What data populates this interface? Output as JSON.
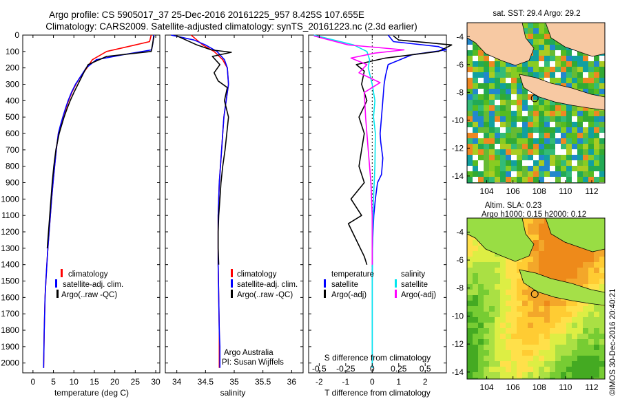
{
  "header": {
    "line1": "Argo profile: CS 5905017_37 25-Dec-2016 20161225_957 8.425S 107.655E",
    "line2": "Climatology: CARS2009. Satellite-adjusted climatology: synTS_20161223.nc (2.3d earlier)"
  },
  "chart_data": [
    {
      "type": "line",
      "title": "",
      "xlabel": "temperature (deg C)",
      "ylabel": "",
      "xlim": [
        -2.5,
        31
      ],
      "ylim": [
        2060,
        0
      ],
      "xticks": [
        0,
        5,
        10,
        15,
        20,
        25,
        30
      ],
      "yticks": [
        0,
        100,
        200,
        300,
        400,
        500,
        600,
        700,
        800,
        900,
        1000,
        1100,
        1200,
        1300,
        1400,
        1500,
        1600,
        1700,
        1800,
        1900,
        2000
      ],
      "legend": [
        "climatology",
        "satellite-adj. clim.",
        "Argo(..raw -QC)"
      ],
      "series": [
        {
          "name": "climatology",
          "color": "#ff0000",
          "x": [
            28.9,
            28.5,
            25,
            18,
            14.5,
            13.2,
            11.7,
            10.5,
            9.5,
            8.7,
            8.0,
            7.3,
            6.8,
            6.2,
            5.7,
            5.3,
            4.9,
            4.55,
            4.25,
            3.95,
            3.65,
            3.4,
            3.15,
            2.95,
            2.75,
            2.6
          ],
          "y": [
            0,
            40,
            60,
            100,
            150,
            200,
            250,
            300,
            350,
            400,
            450,
            500,
            550,
            600,
            700,
            800,
            900,
            1000,
            1100,
            1200,
            1300,
            1400,
            1500,
            1600,
            1800,
            2030
          ]
        },
        {
          "name": "satellite-adj. clim.",
          "color": "#0000ff",
          "x": [
            29.5,
            29.3,
            29.0,
            22,
            15.5,
            13.0,
            11.7,
            10.4,
            9.4,
            8.6,
            7.9,
            7.3,
            6.7,
            6.2,
            5.7,
            5.3,
            4.9,
            4.55,
            4.25,
            3.95,
            3.65,
            3.4,
            3.15,
            2.95,
            2.75,
            2.6
          ],
          "y": [
            0,
            50,
            90,
            120,
            150,
            200,
            250,
            300,
            350,
            400,
            450,
            500,
            550,
            600,
            700,
            800,
            900,
            1000,
            1100,
            1200,
            1300,
            1400,
            1500,
            1600,
            1800,
            2030
          ]
        },
        {
          "name": "Argo(..raw -QC)",
          "color": "#000000",
          "x": [
            29.6,
            29.4,
            29.2,
            28.9,
            18,
            13.5,
            12.4,
            11.0,
            10.0,
            9.1,
            8.3,
            7.6,
            7.0,
            6.4,
            5.6,
            5.1,
            4.7,
            4.4,
            4.1,
            3.8,
            3.5
          ],
          "y": [
            5,
            30,
            60,
            100,
            130,
            180,
            230,
            300,
            350,
            400,
            450,
            500,
            550,
            600,
            700,
            800,
            900,
            1000,
            1100,
            1200,
            1300
          ]
        }
      ]
    },
    {
      "type": "line",
      "title": "",
      "xlabel": "salinity",
      "ylabel": "",
      "xlim": [
        33.8,
        36.2
      ],
      "ylim": [
        2060,
        0
      ],
      "xticks": [
        34,
        34.5,
        35,
        35.5,
        36
      ],
      "xticklabels": [
        "34",
        "34.5",
        "35",
        "35.5",
        "36"
      ],
      "legend": [
        "climatology",
        "satellite-adj. clim.",
        "Argo(..raw -QC)"
      ],
      "annotations": [
        "Argo Australia",
        "PI: Susan Wijffels"
      ],
      "series": [
        {
          "name": "climatology",
          "color": "#ff0000",
          "x": [
            34.25,
            34.35,
            34.45,
            34.65,
            34.8,
            34.88,
            34.9,
            34.86,
            34.82,
            34.8,
            34.78,
            34.76,
            34.74,
            34.73,
            34.72,
            34.72,
            34.72,
            34.73,
            34.74,
            34.74,
            34.74
          ],
          "y": [
            0,
            30,
            60,
            100,
            150,
            200,
            300,
            400,
            500,
            600,
            700,
            800,
            900,
            1000,
            1100,
            1200,
            1400,
            1600,
            1800,
            1900,
            2030
          ]
        },
        {
          "name": "satellite-adj. clim.",
          "color": "#0000ff",
          "x": [
            33.9,
            34.3,
            34.5,
            34.7,
            34.83,
            34.88,
            34.9,
            34.86,
            34.82,
            34.8,
            34.78,
            34.76,
            34.74,
            34.73,
            34.72,
            34.72,
            34.72,
            34.73,
            34.74,
            34.75,
            34.75
          ],
          "y": [
            0,
            30,
            60,
            100,
            150,
            200,
            300,
            400,
            500,
            600,
            700,
            800,
            900,
            1000,
            1100,
            1200,
            1400,
            1600,
            1800,
            1900,
            2030
          ]
        },
        {
          "name": "Argo(..raw -QC)",
          "color": "#000000",
          "x": [
            34.0,
            34.35,
            34.6,
            34.95,
            34.62,
            34.75,
            34.65,
            34.72,
            34.88,
            34.83,
            34.9,
            34.87,
            34.84,
            34.8,
            34.77,
            34.75,
            34.73,
            34.72,
            34.72,
            34.73
          ],
          "y": [
            5,
            60,
            90,
            105,
            130,
            180,
            230,
            280,
            320,
            400,
            500,
            600,
            700,
            800,
            900,
            1000,
            1100,
            1200,
            1300,
            1400
          ]
        }
      ]
    },
    {
      "type": "line",
      "title": "",
      "xlabel": "T difference from climatology",
      "xlabel_top": "S difference from climatology",
      "ylabel": "",
      "xlim": [
        -2.4,
        2.8
      ],
      "ylim": [
        2060,
        0
      ],
      "xticks": [
        -2,
        -1,
        0,
        1,
        2
      ],
      "sticks": [
        -0.5,
        -0.25,
        0,
        0.25,
        0.5
      ],
      "sticklabels": [
        "-0.5",
        "-0.25",
        "0",
        "0.25",
        "0.5"
      ],
      "legend_t_title": "temperature",
      "legend_s_title": "salinity",
      "legend": [
        "satellite",
        "Argo(-adj)",
        "satellite",
        "Argo(-adj)"
      ],
      "series": [
        {
          "name": "T satellite",
          "color": "#0000ff",
          "x": [
            0.6,
            0.8,
            2.5,
            2.8,
            1.5,
            0.6,
            0.5,
            0.45,
            0.4,
            0.35,
            0.3,
            0.32,
            0.4,
            0.35,
            0.2,
            0.12,
            0.06,
            0.03,
            0.01,
            0.0,
            0.0,
            0.0
          ],
          "y": [
            0,
            40,
            70,
            90,
            120,
            180,
            250,
            300,
            400,
            500,
            600,
            650,
            750,
            850,
            900,
            1000,
            1100,
            1200,
            1300,
            1500,
            1800,
            2030
          ]
        },
        {
          "name": "T Argo(-adj)",
          "color": "#000000",
          "x": [
            0.8,
            1.0,
            3.0,
            2.5,
            0.5,
            -0.6,
            -0.3,
            -0.4,
            -0.2,
            -0.5,
            -0.3,
            -0.4,
            -0.5,
            -0.3,
            -0.8,
            -0.4,
            -0.9,
            -0.6,
            -0.3,
            -0.2
          ],
          "y": [
            5,
            30,
            60,
            100,
            140,
            180,
            220,
            300,
            400,
            500,
            600,
            700,
            800,
            900,
            1000,
            1100,
            1150,
            1250,
            1350,
            1400
          ]
        },
        {
          "name": "S satellite",
          "color": "#00e5ee",
          "x": [
            -2.2,
            -0.7,
            -0.2,
            -0.1,
            -0.15,
            0.0,
            0.1,
            0.05,
            0.12,
            0.1,
            0.05,
            0.02,
            0.0,
            0.0
          ],
          "y": [
            0,
            60,
            100,
            150,
            200,
            300,
            400,
            500,
            600,
            800,
            1000,
            1200,
            1500,
            2030
          ]
        },
        {
          "name": "S Argo(-adj)",
          "color": "#ff00ff",
          "x": [
            -2.2,
            -0.9,
            1.2,
            0.1,
            -0.8,
            -0.2,
            -0.5,
            0.3,
            -0.3,
            -0.25,
            -0.15,
            -0.05,
            0.0,
            0.0
          ],
          "y": [
            5,
            60,
            90,
            110,
            140,
            180,
            230,
            290,
            350,
            500,
            700,
            900,
            1100,
            1400
          ]
        }
      ]
    },
    {
      "type": "heatmap",
      "title": "sat. SST: 29.4 Argo: 29.2",
      "xticks": [
        104,
        106,
        108,
        110,
        112
      ],
      "yticks": [
        -4,
        -6,
        -8,
        -10,
        -12,
        -14
      ],
      "xlim": [
        102.5,
        113
      ],
      "ylim": [
        -14.5,
        -3
      ],
      "argo_position": [
        107.655,
        -8.425
      ]
    },
    {
      "type": "heatmap",
      "title": "Altim. SLA: 0.23",
      "subtitle": "Argo h1000: 0.15 h2000: 0.12",
      "xticks": [
        104,
        106,
        108,
        110,
        112
      ],
      "yticks": [
        -4,
        -6,
        -8,
        -10,
        -12,
        -14
      ],
      "xlim": [
        102.5,
        113
      ],
      "ylim": [
        -14.5,
        -3
      ],
      "argo_position": [
        107.655,
        -8.425
      ]
    }
  ],
  "credit": "©IMOS 30-Dec-2016 20:40:21"
}
